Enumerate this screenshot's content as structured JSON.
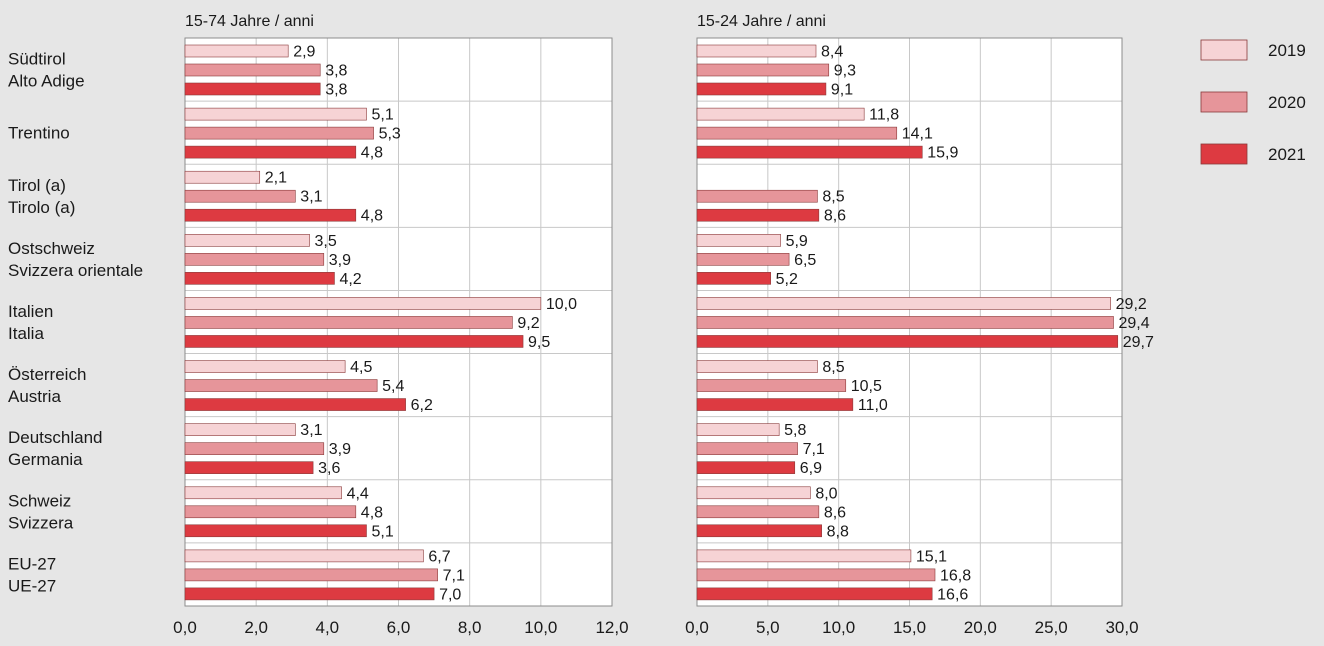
{
  "chart_data": {
    "type": "bar",
    "orientation": "horizontal",
    "grid": true,
    "legend_placement": "right",
    "categories": [
      [
        "Südtirol",
        "Alto Adige"
      ],
      [
        "Trentino"
      ],
      [
        "Tirol (a)",
        "Tirolo (a)"
      ],
      [
        "Ostschweiz",
        "Svizzera orientale"
      ],
      [
        "Italien",
        "Italia"
      ],
      [
        "Österreich",
        "Austria"
      ],
      [
        "Deutschland",
        "Germania"
      ],
      [
        "Schweiz",
        "Svizzera"
      ],
      [
        "EU-27",
        "UE-27"
      ]
    ],
    "legend": [
      {
        "name": "2019",
        "color": "#f6d3d5"
      },
      {
        "name": "2020",
        "color": "#e6959a"
      },
      {
        "name": "2021",
        "color": "#dd3a41"
      }
    ],
    "panels": [
      {
        "title": "15-74 Jahre / anni",
        "xlim": [
          0,
          12
        ],
        "ticks": [
          "0,0",
          "2,0",
          "4,0",
          "6,0",
          "8,0",
          "10,0",
          "12,0"
        ],
        "tick_values": [
          0,
          2,
          4,
          6,
          8,
          10,
          12
        ],
        "series": [
          {
            "name": "2019",
            "values": [
              2.9,
              5.1,
              2.1,
              3.5,
              10.0,
              4.5,
              3.1,
              4.4,
              6.7
            ],
            "labels": [
              "2,9",
              "5,1",
              "2,1",
              "3,5",
              "10,0",
              "4,5",
              "3,1",
              "4,4",
              "6,7"
            ]
          },
          {
            "name": "2020",
            "values": [
              3.8,
              5.3,
              3.1,
              3.9,
              9.2,
              5.4,
              3.9,
              4.8,
              7.1
            ],
            "labels": [
              "3,8",
              "5,3",
              "3,1",
              "3,9",
              "9,2",
              "5,4",
              "3,9",
              "4,8",
              "7,1"
            ]
          },
          {
            "name": "2021",
            "values": [
              3.8,
              4.8,
              4.8,
              4.2,
              9.5,
              6.2,
              3.6,
              5.1,
              7.0
            ],
            "labels": [
              "3,8",
              "4,8",
              "4,8",
              "4,2",
              "9,5",
              "6,2",
              "3,6",
              "5,1",
              "7,0"
            ]
          }
        ]
      },
      {
        "title": "15-24 Jahre / anni",
        "xlim": [
          0,
          30
        ],
        "ticks": [
          "0,0",
          "5,0",
          "10,0",
          "15,0",
          "20,0",
          "25,0",
          "30,0"
        ],
        "tick_values": [
          0,
          5,
          10,
          15,
          20,
          25,
          30
        ],
        "series": [
          {
            "name": "2019",
            "values": [
              8.4,
              11.8,
              null,
              5.9,
              29.2,
              8.5,
              5.8,
              8.0,
              15.1
            ],
            "labels": [
              "8,4",
              "11,8",
              null,
              "5,9",
              "29,2",
              "8,5",
              "5,8",
              "8,0",
              "15,1"
            ]
          },
          {
            "name": "2020",
            "values": [
              9.3,
              14.1,
              8.5,
              6.5,
              29.4,
              10.5,
              7.1,
              8.6,
              16.8
            ],
            "labels": [
              "9,3",
              "14,1",
              "8,5",
              "6,5",
              "29,4",
              "10,5",
              "7,1",
              "8,6",
              "16,8"
            ]
          },
          {
            "name": "2021",
            "values": [
              9.1,
              15.9,
              8.6,
              5.2,
              29.7,
              11.0,
              6.9,
              8.8,
              16.6
            ],
            "labels": [
              "9,1",
              "15,9",
              "8,6",
              "5,2",
              "29,7",
              "11,0",
              "6,9",
              "8,8",
              "16,6"
            ]
          }
        ]
      }
    ]
  }
}
